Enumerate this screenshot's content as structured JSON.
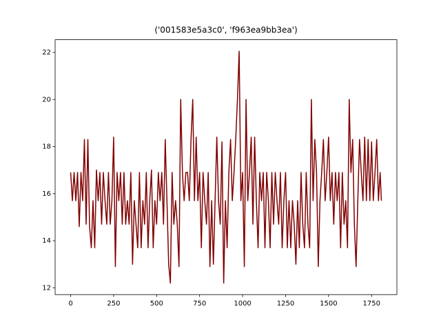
{
  "chart_data": {
    "type": "line",
    "title": "('001583e5a3c0', 'f963ea9bb3ea')",
    "x": [
      0,
      10,
      20,
      30,
      40,
      50,
      60,
      70,
      80,
      90,
      100,
      110,
      120,
      130,
      140,
      150,
      160,
      170,
      180,
      190,
      200,
      210,
      220,
      230,
      240,
      250,
      260,
      270,
      280,
      290,
      300,
      310,
      320,
      330,
      340,
      350,
      360,
      370,
      380,
      390,
      400,
      410,
      420,
      430,
      440,
      450,
      460,
      470,
      480,
      490,
      500,
      510,
      520,
      530,
      540,
      550,
      560,
      570,
      580,
      590,
      600,
      610,
      620,
      630,
      640,
      650,
      660,
      670,
      680,
      690,
      700,
      710,
      720,
      730,
      740,
      750,
      760,
      770,
      780,
      790,
      800,
      810,
      820,
      830,
      840,
      850,
      860,
      870,
      880,
      890,
      900,
      910,
      920,
      930,
      940,
      950,
      960,
      970,
      980,
      990,
      1000,
      1010,
      1020,
      1030,
      1040,
      1050,
      1060,
      1070,
      1080,
      1090,
      1100,
      1110,
      1120,
      1130,
      1140,
      1150,
      1160,
      1170,
      1180,
      1190,
      1200,
      1210,
      1220,
      1230,
      1240,
      1250,
      1260,
      1270,
      1280,
      1290,
      1300,
      1310,
      1320,
      1330,
      1340,
      1350,
      1360,
      1370,
      1380,
      1390,
      1400,
      1410,
      1420,
      1430,
      1440,
      1450,
      1460,
      1470,
      1480,
      1490,
      1500,
      1510,
      1520,
      1530,
      1540,
      1550,
      1560,
      1570,
      1580,
      1590,
      1600,
      1610,
      1620,
      1630,
      1640,
      1650,
      1660,
      1670,
      1680,
      1690,
      1700,
      1710,
      1720,
      1730,
      1740,
      1750,
      1760,
      1770,
      1780,
      1790,
      1800,
      1807
    ],
    "series": [
      {
        "color": "#800000",
        "values": [
          16.9,
          15.7,
          16.9,
          15.7,
          16.9,
          14.6,
          16.9,
          15.7,
          18.3,
          14.7,
          18.3,
          14.6,
          13.7,
          15.7,
          13.7,
          17.0,
          15.7,
          16.9,
          14.7,
          16.9,
          15.7,
          14.7,
          16.9,
          14.7,
          15.7,
          18.4,
          12.9,
          16.9,
          15.7,
          16.9,
          14.7,
          16.9,
          14.7,
          15.7,
          14.7,
          16.9,
          13.0,
          15.7,
          14.7,
          13.7,
          16.9,
          13.7,
          15.7,
          14.7,
          16.9,
          13.7,
          15.7,
          17.0,
          13.7,
          15.7,
          14.7,
          16.9,
          15.7,
          16.9,
          14.7,
          18.3,
          15.7,
          13.0,
          12.2,
          16.9,
          14.7,
          15.7,
          14.7,
          12.9,
          20.0,
          16.9,
          15.7,
          16.9,
          16.9,
          15.7,
          18.3,
          20.0,
          15.7,
          18.4,
          15.7,
          16.9,
          13.7,
          16.9,
          15.7,
          14.7,
          16.9,
          12.9,
          15.7,
          13.0,
          15.7,
          18.4,
          15.7,
          14.7,
          18.2,
          12.2,
          15.7,
          13.7,
          16.9,
          18.3,
          15.7,
          16.9,
          18.3,
          20.0,
          22.05,
          15.7,
          16.9,
          12.9,
          20.0,
          15.7,
          16.9,
          18.4,
          14.7,
          18.4,
          15.7,
          13.7,
          16.9,
          15.7,
          16.9,
          13.7,
          16.9,
          15.7,
          13.7,
          16.9,
          14.7,
          16.9,
          15.7,
          14.7,
          16.9,
          13.7,
          15.7,
          16.9,
          13.7,
          15.7,
          13.7,
          15.7,
          14.7,
          13.0,
          15.7,
          13.7,
          16.9,
          14.7,
          13.7,
          16.9,
          14.7,
          13.7,
          20.0,
          15.7,
          18.3,
          16.9,
          12.9,
          15.7,
          16.9,
          18.3,
          15.7,
          16.9,
          18.4,
          15.7,
          16.9,
          14.7,
          16.9,
          15.7,
          16.9,
          13.7,
          16.9,
          14.7,
          15.7,
          13.7,
          20.0,
          16.9,
          18.3,
          14.7,
          12.9,
          15.7,
          18.3,
          16.9,
          15.7,
          18.4,
          15.7,
          18.3,
          15.7,
          18.2,
          15.7,
          16.9,
          18.3,
          15.7,
          16.9,
          15.7
        ]
      }
    ],
    "xlim": [
      -90.35,
      1897.35
    ],
    "ylim": [
      11.71,
      22.54
    ],
    "xticks": [
      0,
      250,
      500,
      750,
      1000,
      1250,
      1500,
      1750
    ],
    "yticks": [
      12,
      14,
      16,
      18,
      20,
      22
    ]
  }
}
